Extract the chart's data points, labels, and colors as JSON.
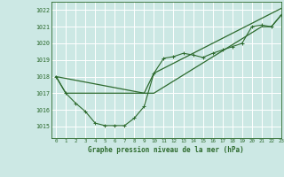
{
  "title": "Graphe pression niveau de la mer (hPa)",
  "bg_color": "#cce8e4",
  "grid_color": "#b0d8d2",
  "line_color": "#2d6a2d",
  "xlim": [
    -0.5,
    23
  ],
  "ylim": [
    1014.3,
    1022.5
  ],
  "yticks": [
    1015,
    1016,
    1017,
    1018,
    1019,
    1020,
    1021,
    1022
  ],
  "xticks": [
    0,
    1,
    2,
    3,
    4,
    5,
    6,
    7,
    8,
    9,
    10,
    11,
    12,
    13,
    14,
    15,
    16,
    17,
    18,
    19,
    20,
    21,
    22,
    23
  ],
  "series1_x": [
    0,
    1,
    2,
    3,
    4,
    5,
    6,
    7,
    8,
    9,
    10,
    11,
    12,
    13,
    14,
    15,
    16,
    17,
    18,
    19,
    20,
    21,
    22,
    23
  ],
  "series1_y": [
    1018.0,
    1017.0,
    1016.4,
    1015.9,
    1015.2,
    1015.05,
    1015.05,
    1015.05,
    1015.5,
    1016.2,
    1018.2,
    1019.1,
    1019.2,
    1019.4,
    1019.3,
    1019.15,
    1019.4,
    1019.6,
    1019.8,
    1020.0,
    1021.0,
    1021.1,
    1021.0,
    1021.7
  ],
  "series2_x": [
    0,
    1,
    9,
    10,
    21,
    22,
    23
  ],
  "series2_y": [
    1018.0,
    1017.0,
    1017.0,
    1017.0,
    1021.0,
    1021.0,
    1021.7
  ],
  "series3_x": [
    0,
    9,
    10,
    23
  ],
  "series3_y": [
    1018.0,
    1017.0,
    1018.2,
    1022.1
  ]
}
